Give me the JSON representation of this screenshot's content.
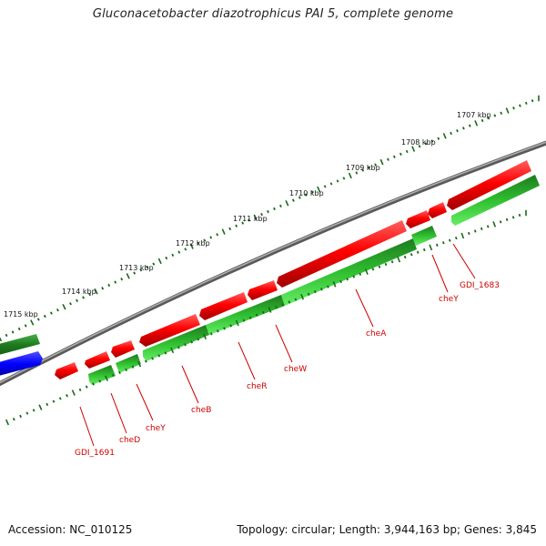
{
  "title": "Gluconacetobacter diazotrophicus PAI 5, complete genome",
  "footer": {
    "accession": "Accession: NC_010125",
    "info": "Topology: circular; Length: 3,944,163 bp; Genes: 3,845"
  },
  "colors": {
    "forward_gene": "#ff0000",
    "reverse_gene": "#2fbf2f",
    "reverse_gene_dark": "#1e7a1e",
    "other_gene": "#0000ff",
    "backbone": "#808080",
    "tick": "#1a6a1a",
    "label": "#cc0000"
  },
  "scale": {
    "unit": "kbp",
    "tick_labels": [
      "1707 kbp",
      "1708 kbp",
      "1709 kbp",
      "1710 kbp",
      "1711 kbp",
      "1712 kbp",
      "1713 kbp",
      "1714 kbp",
      "1715 kbp"
    ]
  },
  "genes": [
    {
      "name": "GDI_1691"
    },
    {
      "name": "cheD"
    },
    {
      "name": "cheY"
    },
    {
      "name": "cheB"
    },
    {
      "name": "cheR"
    },
    {
      "name": "cheW"
    },
    {
      "name": "cheA"
    },
    {
      "name": "cheY"
    },
    {
      "name": "GDI_1683"
    }
  ]
}
